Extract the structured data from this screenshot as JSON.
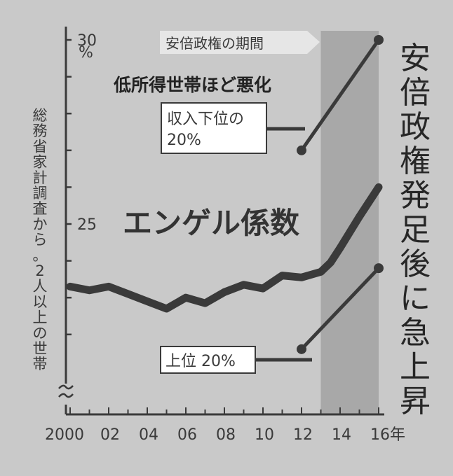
{
  "chart_data": {
    "type": "line",
    "title": "エンゲル係数",
    "subtitle": "低所得世帯ほど悪化",
    "headline": "安倍政権発足後に急上昇",
    "source_note": "総務省家計調査から。2人以上の世帯",
    "shaded_region": {
      "label": "安倍政権の期間",
      "x_start": 2013.0,
      "x_end": 2016.0,
      "color": "#a8a8a8"
    },
    "x_ticks": [
      {
        "x": 2000,
        "label": "2000"
      },
      {
        "x": 2002,
        "label": "02"
      },
      {
        "x": 2004,
        "label": "04"
      },
      {
        "x": 2006,
        "label": "06"
      },
      {
        "x": 2008,
        "label": "08"
      },
      {
        "x": 2010,
        "label": "10"
      },
      {
        "x": 2012,
        "label": "12"
      },
      {
        "x": 2014,
        "label": "14"
      },
      {
        "x": 2016,
        "label": "16年"
      }
    ],
    "y_ticks": [
      {
        "y": 25,
        "label": "25"
      },
      {
        "y": 30,
        "label": "30"
      }
    ],
    "y_unit": "%",
    "xlim": [
      2000,
      2016
    ],
    "ylim": [
      22.0,
      30.5
    ],
    "series": [
      {
        "name": "エンゲル係数",
        "color": "#3a3a3a",
        "x": [
          2000,
          2001,
          2002,
          2003,
          2004,
          2005,
          2006,
          2007,
          2008,
          2009,
          2010,
          2011,
          2012,
          2013,
          2013.5,
          2014,
          2015,
          2016
        ],
        "y": [
          23.3,
          23.2,
          23.3,
          23.1,
          22.9,
          22.7,
          23.0,
          22.85,
          23.15,
          23.35,
          23.25,
          23.6,
          23.55,
          23.7,
          23.95,
          24.35,
          25.2,
          26.0
        ]
      },
      {
        "name": "収入下位の20%",
        "color": "#3a3a3a",
        "x": [
          2012,
          2016
        ],
        "y": [
          27.0,
          30.0
        ]
      },
      {
        "name": "上位 20%",
        "color": "#3a3a3a",
        "x": [
          2012,
          2016
        ],
        "y": [
          21.6,
          23.8
        ]
      }
    ],
    "callouts": [
      {
        "lines": [
          "収入下位の",
          "20%"
        ],
        "series": "収入下位の20%"
      },
      {
        "lines": [
          "上位 20%"
        ],
        "series": "上位 20%"
      }
    ]
  }
}
